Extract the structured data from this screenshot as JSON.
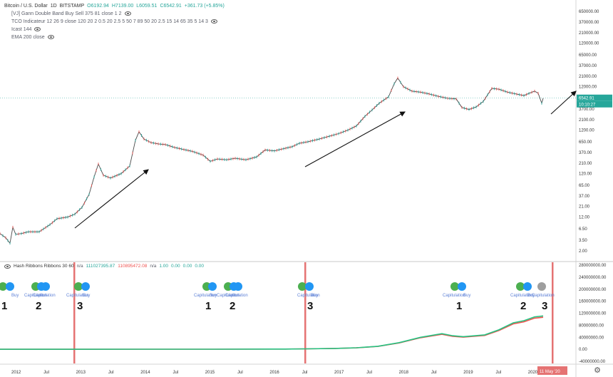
{
  "main_legend": {
    "title": "Bitcoin / U.S. Dollar",
    "interval": "1D",
    "exchange": "BITSTAMP",
    "open": "O6192.94",
    "high": "H7139.00",
    "low": "L6059.51",
    "close": "C6542.91",
    "change": "+361.73 (+5.85%)",
    "indicators": [
      "[VJ] Gann Double Band Buy Sell 375 81 close 1 2",
      "TCO Indicateur 12 26 9 close 120 20 2 0.5 20 2.5 5 50 7 89 50 20 2.5 15 14 65 35 5 14 3",
      "Icast 144",
      "EMA 200 close"
    ]
  },
  "sub_legend": {
    "title": "Hash Ribbons Ribbons 30 60",
    "v1": "n/a",
    "v2": "111027395.87",
    "v3": "110895472.08",
    "v4": "n/a",
    "v5": "1.00",
    "v6": "0.00",
    "v7": "0.00",
    "v8": "0.00"
  },
  "price_axis": {
    "labels": [
      "650000.00",
      "370000.00",
      "210000.00",
      "120000.00",
      "65000.00",
      "37000.00",
      "21000.00",
      "12000.00",
      "3700.00",
      "2100.00",
      "1200.00",
      "650.00",
      "370.00",
      "210.00",
      "120.00",
      "65.00",
      "37.00",
      "21.00",
      "12.00",
      "6.50",
      "3.50",
      "2.00"
    ],
    "current_price": "6542.91",
    "countdown": "10:10:27"
  },
  "hash_axis": {
    "labels": [
      "280000000.00",
      "240000000.00",
      "200000000.00",
      "160000000.00",
      "120000000.00",
      "80000000.00",
      "40000000.00",
      "0.00",
      "-40000000.00"
    ]
  },
  "time_axis": {
    "labels": [
      "2012",
      "Jul",
      "2013",
      "Jul",
      "2014",
      "Jul",
      "2015",
      "Jul",
      "2016",
      "Jul",
      "2017",
      "Jul",
      "2018",
      "Jul",
      "2019",
      "Jul",
      "2020"
    ],
    "highlight": "11 May '20"
  },
  "signals": {
    "capitulation": "Capitulation",
    "buy": "Buy"
  },
  "markers": [
    "1",
    "2",
    "3",
    "1",
    "2",
    "3",
    "1",
    "2",
    "3"
  ],
  "colors": {
    "candle_up": "#26a69a",
    "candle_down": "#ef5350",
    "ribbon_fast": "#26c281",
    "ribbon_slow": "#ef5350",
    "capitulation_line": "#e57373",
    "dot_green": "#4caf50",
    "dot_blue": "#2196f3",
    "dot_gray": "#9e9e9e",
    "price_line": "#26a69a",
    "highlight_bg": "#e57373"
  }
}
